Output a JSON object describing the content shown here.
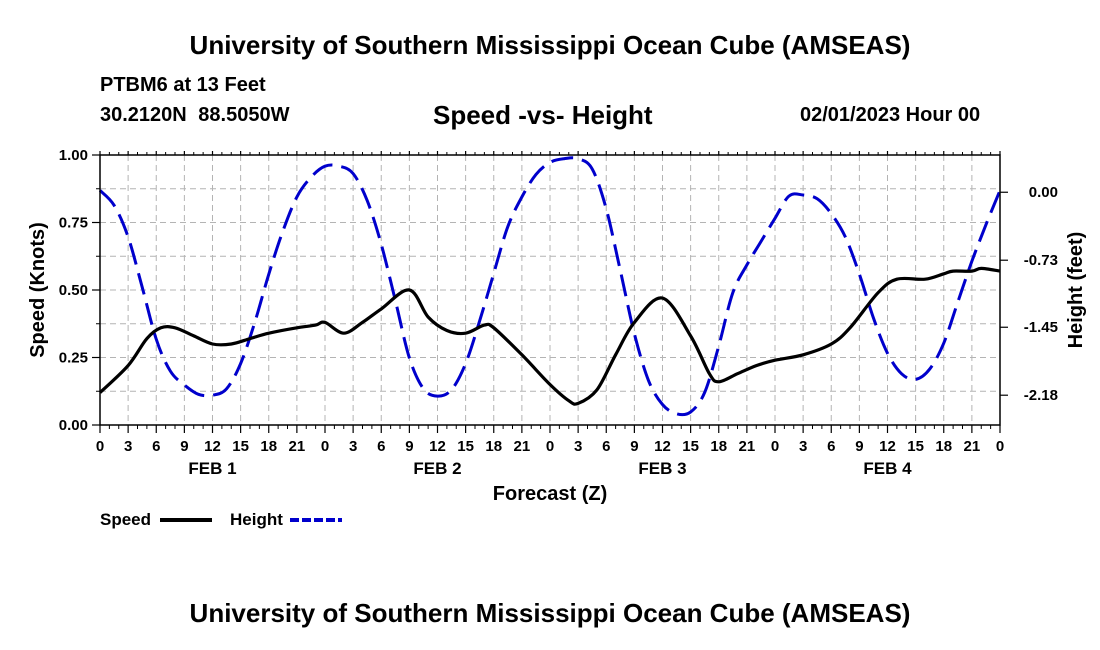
{
  "page": {
    "header_title": "University of Southern Mississippi Ocean Cube (AMSEAS)",
    "footer_title": "University of Southern Mississippi Ocean Cube (AMSEAS)",
    "station_name": "PTBM6 at 13 Feet",
    "station_coords": "30.2120N 88.5050W",
    "chart_title": "Speed -vs- Height",
    "forecast_time": "02/01/2023 Hour 00"
  },
  "colors": {
    "speed": "#000000",
    "height": "#0000cc",
    "grid": "#b4b4b4"
  },
  "chart_data": {
    "type": "line",
    "title": "Speed -vs- Height",
    "xlabel": "Forecast (Z)",
    "ylabel": "Speed (Knots)",
    "y2label": "Height (feet)",
    "x_range_hours": [
      0,
      96
    ],
    "ylim": [
      0,
      1
    ],
    "y2lim": [
      -2.5,
      0.4
    ],
    "y_ticks": [
      "0.00",
      "0.25",
      "0.50",
      "0.75",
      "1.00"
    ],
    "y2_ticks": [
      "0.00",
      "-0.73",
      "-1.45",
      "-2.18"
    ],
    "x_tick_labels": [
      "0",
      "3",
      "6",
      "9",
      "12",
      "15",
      "18",
      "21",
      "0",
      "3",
      "6",
      "9",
      "12",
      "15",
      "18",
      "21",
      "0",
      "3",
      "6",
      "9",
      "12",
      "15",
      "18",
      "21",
      "0",
      "3",
      "6",
      "9",
      "12",
      "15",
      "18",
      "21",
      "0"
    ],
    "day_labels": [
      "FEB 1",
      "FEB 2",
      "FEB 3",
      "FEB 4"
    ],
    "grid": true,
    "series": [
      {
        "name": "Speed",
        "axis": "left",
        "style": "solid",
        "x": [
          0,
          3,
          5,
          6.5,
          8,
          10,
          12,
          14,
          16,
          18,
          21,
          23,
          24,
          26,
          28,
          30,
          33,
          35,
          37,
          39,
          41,
          42,
          45,
          48,
          50,
          51,
          53,
          55,
          57,
          60,
          63,
          65,
          66,
          68,
          70,
          72,
          75,
          78,
          80,
          83,
          85,
          88,
          90,
          91,
          93,
          94,
          96
        ],
        "y": [
          0.12,
          0.22,
          0.32,
          0.36,
          0.36,
          0.33,
          0.3,
          0.3,
          0.32,
          0.34,
          0.36,
          0.37,
          0.38,
          0.34,
          0.38,
          0.43,
          0.5,
          0.4,
          0.35,
          0.34,
          0.37,
          0.36,
          0.26,
          0.15,
          0.09,
          0.08,
          0.13,
          0.26,
          0.38,
          0.47,
          0.33,
          0.19,
          0.16,
          0.19,
          0.22,
          0.24,
          0.26,
          0.3,
          0.36,
          0.49,
          0.54,
          0.54,
          0.56,
          0.57,
          0.57,
          0.58,
          0.57
        ]
      },
      {
        "name": "Height",
        "axis": "right",
        "style": "dashed",
        "x": [
          0,
          1.5,
          3,
          4.5,
          6,
          7.5,
          9,
          10.5,
          12,
          13.5,
          15,
          16.5,
          18,
          19.5,
          21,
          22.5,
          24,
          25.5,
          27,
          28.5,
          30,
          31.5,
          33,
          34.5,
          36,
          37.5,
          39,
          40.5,
          42,
          43.5,
          45,
          46.5,
          48,
          49.5,
          51,
          52.5,
          54,
          55.5,
          57,
          58.5,
          60,
          61.5,
          63,
          64.5,
          66,
          67.5,
          69,
          70.5,
          72,
          73.5,
          75,
          76.5,
          78,
          79.5,
          81,
          82.5,
          84,
          85.5,
          87,
          88.5,
          90,
          91.5,
          93,
          94.5,
          96
        ],
        "y": [
          0.02,
          -0.14,
          -0.48,
          -1.02,
          -1.58,
          -1.92,
          -2.07,
          -2.17,
          -2.18,
          -2.11,
          -1.84,
          -1.4,
          -0.88,
          -0.42,
          -0.05,
          0.16,
          0.28,
          0.28,
          0.2,
          -0.09,
          -0.56,
          -1.16,
          -1.78,
          -2.11,
          -2.19,
          -2.12,
          -1.84,
          -1.38,
          -0.87,
          -0.37,
          -0.05,
          0.19,
          0.32,
          0.36,
          0.36,
          0.25,
          -0.18,
          -0.84,
          -1.52,
          -2.02,
          -2.28,
          -2.38,
          -2.36,
          -2.15,
          -1.65,
          -1.08,
          -0.78,
          -0.53,
          -0.28,
          -0.04,
          -0.03,
          -0.07,
          -0.23,
          -0.48,
          -0.88,
          -1.35,
          -1.73,
          -1.95,
          -2.01,
          -1.9,
          -1.62,
          -1.18,
          -0.74,
          -0.35,
          0.02
        ]
      }
    ],
    "legend": {
      "position": "bottom-left",
      "entries": [
        "Speed",
        "Height"
      ]
    }
  }
}
